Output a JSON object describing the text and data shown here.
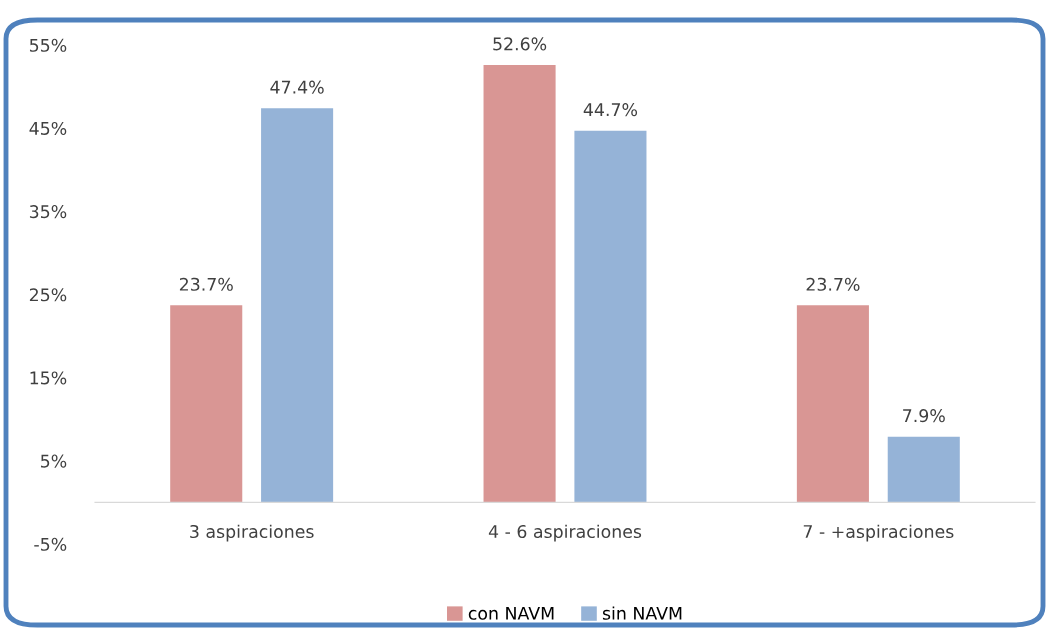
{
  "chart_data": {
    "type": "bar",
    "categories": [
      "3 aspiraciones",
      "4 - 6 aspiraciones",
      "7 - +aspiraciones"
    ],
    "series": [
      {
        "name": "con NAVM",
        "color": "#d99694",
        "values": [
          23.7,
          52.6,
          23.7
        ],
        "value_labels": [
          "23.7%",
          "52.6%",
          "23.7%"
        ]
      },
      {
        "name": "sin NAVM",
        "color": "#95b3d7",
        "values": [
          47.4,
          44.7,
          7.9
        ],
        "value_labels": [
          "47.4%",
          "44.7%",
          "7.9%"
        ]
      }
    ],
    "ylim": [
      -5,
      55
    ],
    "yticks": [
      {
        "value": -5,
        "label": "-5%"
      },
      {
        "value": 5,
        "label": "5%"
      },
      {
        "value": 15,
        "label": "15%"
      },
      {
        "value": 25,
        "label": "25%"
      },
      {
        "value": 35,
        "label": "35%"
      },
      {
        "value": 45,
        "label": "45%"
      },
      {
        "value": 55,
        "label": "55%"
      }
    ],
    "grid": false,
    "legend": "bottom"
  }
}
